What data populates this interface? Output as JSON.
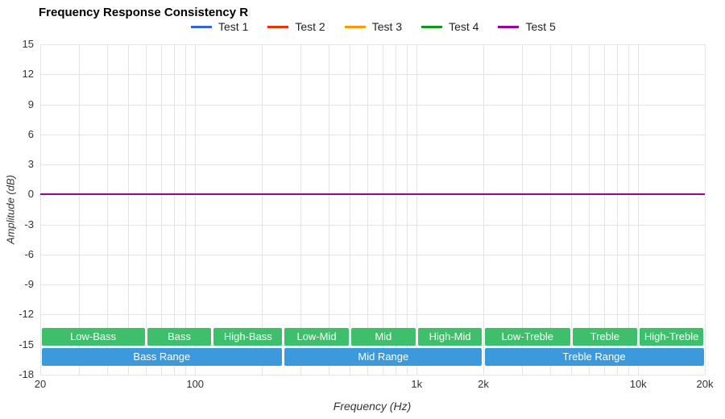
{
  "title": "Frequency Response Consistency R",
  "legend": {
    "items": [
      {
        "label": "Test 1",
        "color": "#3366CC"
      },
      {
        "label": "Test 2",
        "color": "#DC3912"
      },
      {
        "label": "Test 3",
        "color": "#FF9900"
      },
      {
        "label": "Test 4",
        "color": "#109618"
      },
      {
        "label": "Test 5",
        "color": "#990099"
      }
    ]
  },
  "chart_data": {
    "type": "line",
    "title": "Frequency Response Consistency R",
    "xlabel": "Frequency (Hz)",
    "ylabel": "Amplitude (dB)",
    "x_scale": "log",
    "xlim": [
      20,
      20000
    ],
    "ylim": [
      -18,
      15
    ],
    "grid": true,
    "legend_position": "top",
    "y_ticks": [
      15,
      12,
      9,
      6,
      3,
      0,
      -3,
      -6,
      -9,
      -12,
      -15,
      -18
    ],
    "x_ticks": [
      {
        "value": 20,
        "label": "20"
      },
      {
        "value": 100,
        "label": "100"
      },
      {
        "value": 1000,
        "label": "1k"
      },
      {
        "value": 2000,
        "label": "2k"
      },
      {
        "value": 10000,
        "label": "10k"
      },
      {
        "value": 20000,
        "label": "20k"
      }
    ],
    "x_gridlines": [
      20,
      30,
      40,
      50,
      60,
      70,
      80,
      90,
      100,
      200,
      300,
      400,
      500,
      600,
      700,
      800,
      900,
      1000,
      2000,
      3000,
      4000,
      5000,
      6000,
      7000,
      8000,
      9000,
      10000,
      20000
    ],
    "series": [
      {
        "name": "Test 1",
        "color": "#3366CC",
        "x_range": [
          20,
          20000
        ],
        "y_value_db": 0
      },
      {
        "name": "Test 2",
        "color": "#DC3912",
        "x_range": [
          20,
          20000
        ],
        "y_value_db": 0
      },
      {
        "name": "Test 3",
        "color": "#FF9900",
        "x_range": [
          20,
          20000
        ],
        "y_value_db": 0
      },
      {
        "name": "Test 4",
        "color": "#109618",
        "x_range": [
          20,
          20000
        ],
        "y_value_db": 0
      },
      {
        "name": "Test 5",
        "color": "#990099",
        "x_range": [
          20,
          20000
        ],
        "y_value_db": 0
      }
    ],
    "frequency_bands": {
      "sub_bands": {
        "color": "#3FBF6C",
        "segments": [
          {
            "label": "Low-Bass",
            "from_hz": 20,
            "to_hz": 60
          },
          {
            "label": "Bass",
            "from_hz": 60,
            "to_hz": 120
          },
          {
            "label": "High-Bass",
            "from_hz": 120,
            "to_hz": 250
          },
          {
            "label": "Low-Mid",
            "from_hz": 250,
            "to_hz": 500
          },
          {
            "label": "Mid",
            "from_hz": 500,
            "to_hz": 1000
          },
          {
            "label": "High-Mid",
            "from_hz": 1000,
            "to_hz": 2000
          },
          {
            "label": "Low-Treble",
            "from_hz": 2000,
            "to_hz": 5000
          },
          {
            "label": "Treble",
            "from_hz": 5000,
            "to_hz": 10000
          },
          {
            "label": "High-Treble",
            "from_hz": 10000,
            "to_hz": 20000
          }
        ]
      },
      "range_bands": {
        "color": "#3B99DC",
        "segments": [
          {
            "label": "Bass Range",
            "from_hz": 20,
            "to_hz": 250
          },
          {
            "label": "Mid Range",
            "from_hz": 250,
            "to_hz": 2000
          },
          {
            "label": "Treble Range",
            "from_hz": 2000,
            "to_hz": 20000
          }
        ]
      }
    }
  }
}
